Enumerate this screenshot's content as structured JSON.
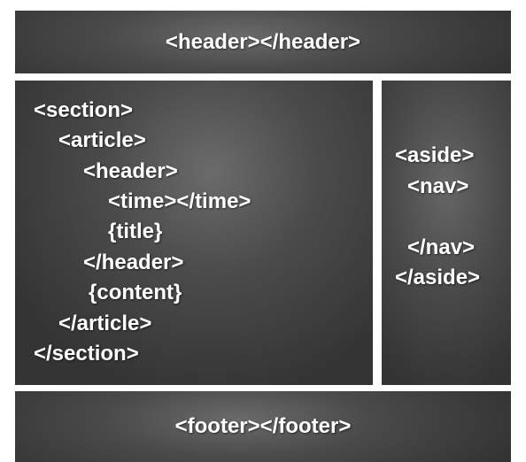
{
  "header": {
    "text": "<header></header>"
  },
  "section": {
    "lines": [
      "<section>",
      "<article>",
      "<header>",
      "<time></time>",
      "{title}",
      "</header>",
      "{content}",
      "</article>",
      "</section>"
    ]
  },
  "aside": {
    "lines": [
      "<aside>",
      "<nav>",
      "</nav>",
      "</aside>"
    ]
  },
  "footer": {
    "text": "<footer></footer>"
  },
  "colors": {
    "box_fill": "#4a4a4a",
    "text": "#ffffff",
    "background": "#ffffff"
  }
}
